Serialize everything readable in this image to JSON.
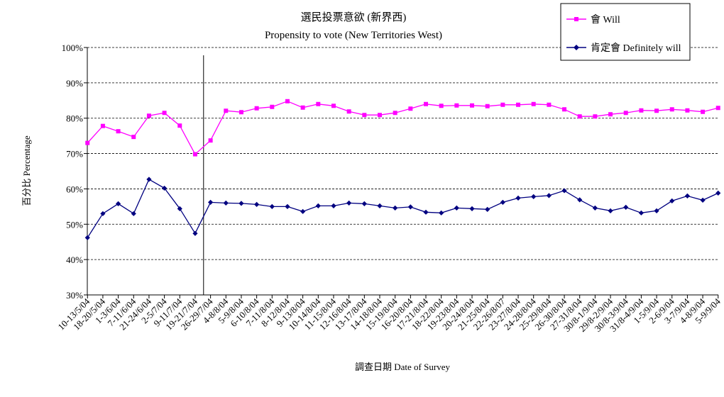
{
  "chart_data": {
    "type": "line",
    "title": "選民投票意欲 (新界西)",
    "subtitle": "Propensity to vote (New Territories West)",
    "xlabel": "調查日期 Date of Survey",
    "ylabel": "百分比 Percentage",
    "ylim": [
      30,
      100
    ],
    "yticks": [
      "30%",
      "40%",
      "50%",
      "60%",
      "70%",
      "80%",
      "90%",
      "100%"
    ],
    "ytick_values": [
      30,
      40,
      50,
      60,
      70,
      80,
      90,
      100
    ],
    "grid": "horizontal-dashed",
    "legend_position": "top-right",
    "categories": [
      "10-13/5/04",
      "18-20/5/04",
      "1-3/6/04",
      "7-11/6/04",
      "21-24/6/04",
      "2-5/7/04",
      "9-11/7/04",
      "19-21/7/04",
      "26-29/7/04",
      "4-8/8/04",
      "5-9/8/04",
      "6-10/8/04",
      "7-11/8/04",
      "8-12/8/04",
      "9-13/8/04",
      "10-14/8/04",
      "11-15/8/04",
      "12-16/8/04",
      "13-17/8/04",
      "14-18/8/04",
      "15-19/8/04",
      "16-20/8/04",
      "17-21/8/04",
      "18-22/8/04",
      "19-23/8/04",
      "20-24/8/04",
      "21-25/8/04",
      "22-26/8/07",
      "23-27/8/04",
      "24-28/8/04",
      "25-29/8/04",
      "26-30/8/04",
      "27-31/8/04",
      "30/8-1/9/04",
      "29/8-2/9/04",
      "30/8-3/9/04",
      "31/8-4/9/04",
      "1-5/9/04",
      "2-6/9/04",
      "3-7/9/04",
      "4-8/9/04",
      "5-9/9/04"
    ],
    "series": [
      {
        "name": "會 Will",
        "color": "#ff00ff",
        "marker": "square",
        "values": [
          73.0,
          77.8,
          76.3,
          74.7,
          80.7,
          81.5,
          77.9,
          69.8,
          73.7,
          82.1,
          81.7,
          82.8,
          83.2,
          84.8,
          83.0,
          84.0,
          83.5,
          81.9,
          80.9,
          80.9,
          81.5,
          82.7,
          84.0,
          83.5,
          83.6,
          83.6,
          83.4,
          83.8,
          83.8,
          84.0,
          83.8,
          82.5,
          80.5,
          80.5,
          81.1,
          81.5,
          82.2,
          82.1,
          82.5,
          82.2,
          81.8,
          82.9
        ]
      },
      {
        "name": "肯定會 Definitely will",
        "color": "#000080",
        "marker": "diamond",
        "values": [
          46.2,
          53.0,
          55.8,
          53.0,
          62.7,
          60.2,
          54.4,
          47.4,
          56.2,
          56.0,
          55.9,
          55.6,
          55.0,
          55.0,
          53.6,
          55.2,
          55.2,
          56.0,
          55.8,
          55.2,
          54.6,
          54.9,
          53.4,
          53.2,
          54.6,
          54.4,
          54.2,
          56.2,
          57.4,
          57.8,
          58.1,
          59.5,
          56.9,
          54.6,
          53.8,
          54.8,
          53.2,
          53.8,
          56.6,
          58.0,
          56.8,
          58.8
        ]
      }
    ],
    "annotations": [
      {
        "type": "vertical-line",
        "after_category": "19-21/7/04"
      }
    ]
  }
}
